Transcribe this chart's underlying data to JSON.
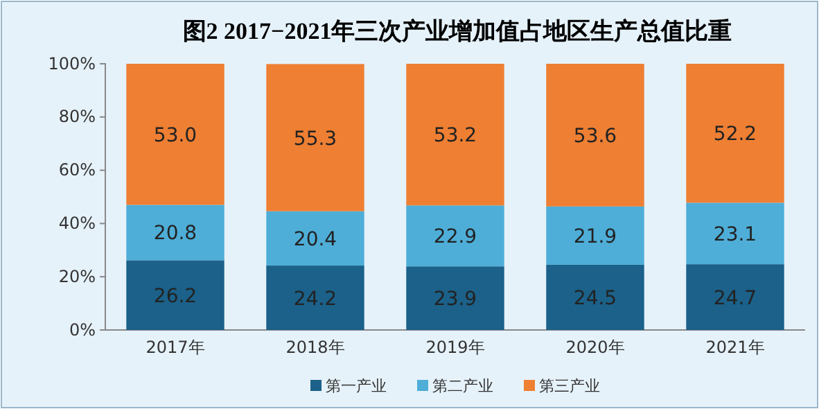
{
  "chart_data": {
    "type": "bar",
    "title": "图2 2017−2021年三次产业增加值占地区生产总值比重",
    "categories": [
      "2017年",
      "2018年",
      "2019年",
      "2020年",
      "2021年"
    ],
    "stacked": true,
    "legend": "bottom",
    "ylim": [
      0,
      100
    ],
    "yticks": [
      {
        "value": 0,
        "label": "0%"
      },
      {
        "value": 20,
        "label": "20%"
      },
      {
        "value": 40,
        "label": "40%"
      },
      {
        "value": 60,
        "label": "60%"
      },
      {
        "value": 80,
        "label": "80%"
      },
      {
        "value": 100,
        "label": "100%"
      }
    ],
    "series": [
      {
        "name": "第一产业",
        "color": "#1b6189",
        "values": [
          26.2,
          24.2,
          23.9,
          24.5,
          24.7
        ],
        "value_labels": [
          "26.2",
          "24.2",
          "23.9",
          "24.5",
          "24.7"
        ]
      },
      {
        "name": "第二产业",
        "color": "#4eaed8",
        "values": [
          20.8,
          20.4,
          22.9,
          21.9,
          23.1
        ],
        "value_labels": [
          "20.8",
          "20.4",
          "22.9",
          "21.9",
          "23.1"
        ]
      },
      {
        "name": "第三产业",
        "color": "#ee7f33",
        "values": [
          53.0,
          55.3,
          53.2,
          53.6,
          52.2
        ],
        "value_labels": [
          "53.0",
          "55.3",
          "53.2",
          "53.6",
          "52.2"
        ]
      }
    ]
  }
}
